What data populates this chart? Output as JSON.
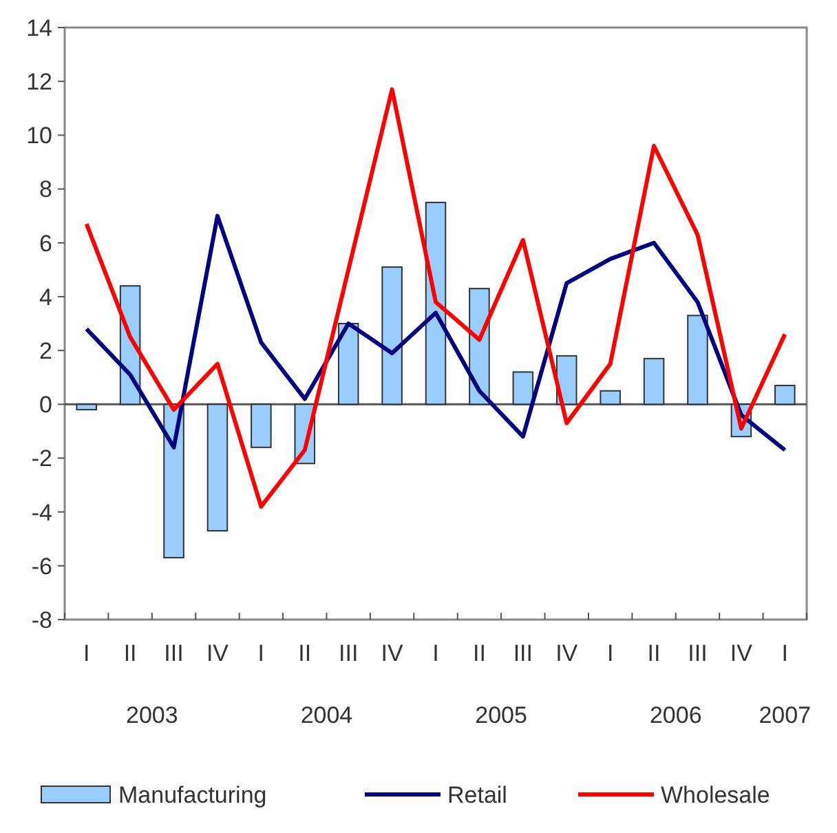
{
  "chart_data": {
    "type": "bar",
    "categories": [
      "I",
      "II",
      "III",
      "IV",
      "I",
      "II",
      "III",
      "IV",
      "I",
      "II",
      "III",
      "IV",
      "I",
      "II",
      "III",
      "IV",
      "I"
    ],
    "annotations": [
      "2003",
      "2004",
      "2005",
      "2006",
      "2007"
    ],
    "series": [
      {
        "name": "Manufacturing",
        "color": "#99ccff",
        "values": [
          -0.2,
          4.4,
          -5.7,
          -4.7,
          -1.6,
          -2.2,
          3.0,
          5.1,
          7.5,
          4.3,
          1.2,
          1.8,
          0.5,
          1.7,
          3.3,
          -1.2,
          0.7
        ]
      },
      {
        "name": "Retail",
        "type": "line",
        "color": "#000080",
        "values": [
          2.8,
          1.1,
          -1.6,
          7.0,
          2.3,
          0.2,
          3.0,
          1.9,
          3.4,
          0.5,
          -1.2,
          4.5,
          5.4,
          6.0,
          3.8,
          -0.4,
          -1.7
        ]
      },
      {
        "name": "Wholesale",
        "type": "line",
        "color": "#ff0000",
        "values": [
          6.7,
          2.5,
          -0.2,
          1.5,
          -3.8,
          -1.7,
          5.0,
          11.7,
          3.8,
          2.4,
          6.1,
          -0.7,
          1.5,
          9.6,
          6.3,
          -0.9,
          2.6
        ]
      }
    ],
    "ylim": [
      -8,
      14
    ],
    "yticks": [
      -8,
      -6,
      -4,
      -2,
      0,
      2,
      4,
      6,
      8,
      10,
      12,
      14
    ],
    "legend": "bottom",
    "marker": "none",
    "line_style": "solid"
  }
}
